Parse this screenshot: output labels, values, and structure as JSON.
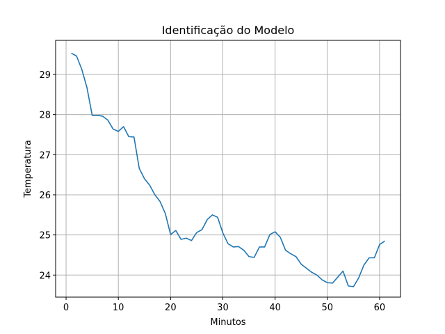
{
  "chart_data": {
    "type": "line",
    "title": "Identificação do Modelo",
    "xlabel": "Minutos",
    "ylabel": "Temperatura",
    "xlim": [
      -2.0,
      64.0
    ],
    "ylim": [
      23.45,
      29.85
    ],
    "xticks": [
      0,
      10,
      20,
      30,
      40,
      50,
      60
    ],
    "yticks": [
      24,
      25,
      26,
      27,
      28,
      29
    ],
    "grid": true,
    "line_color": "#1f77b4",
    "series": [
      {
        "x": [
          1,
          2,
          3,
          4,
          5,
          6,
          7,
          8,
          9,
          10,
          11,
          12,
          13,
          14,
          15,
          16,
          17,
          18,
          19,
          20,
          21,
          22,
          23,
          24,
          25,
          26,
          27,
          28,
          29,
          30,
          31,
          32,
          33,
          34,
          35,
          36,
          37,
          38,
          39,
          40,
          41,
          42,
          43,
          44,
          45,
          46,
          47,
          48,
          49,
          50,
          51,
          52,
          53,
          54,
          55,
          56,
          57,
          58,
          59,
          60,
          61
        ],
        "values": [
          29.53,
          29.46,
          29.13,
          28.67,
          27.98,
          27.98,
          27.96,
          27.86,
          27.64,
          27.58,
          27.7,
          27.45,
          27.44,
          26.66,
          26.4,
          26.24,
          26.0,
          25.83,
          25.53,
          25.01,
          25.11,
          24.89,
          24.92,
          24.86,
          25.06,
          25.13,
          25.38,
          25.5,
          25.44,
          25.05,
          24.78,
          24.7,
          24.71,
          24.62,
          24.46,
          24.44,
          24.7,
          24.7,
          25.01,
          25.08,
          24.94,
          24.62,
          24.53,
          24.46,
          24.27,
          24.17,
          24.07,
          24.0,
          23.88,
          23.81,
          23.8,
          23.95,
          24.1,
          23.73,
          23.71,
          23.93,
          24.25,
          24.43,
          24.43,
          24.76,
          24.85
        ]
      }
    ]
  }
}
